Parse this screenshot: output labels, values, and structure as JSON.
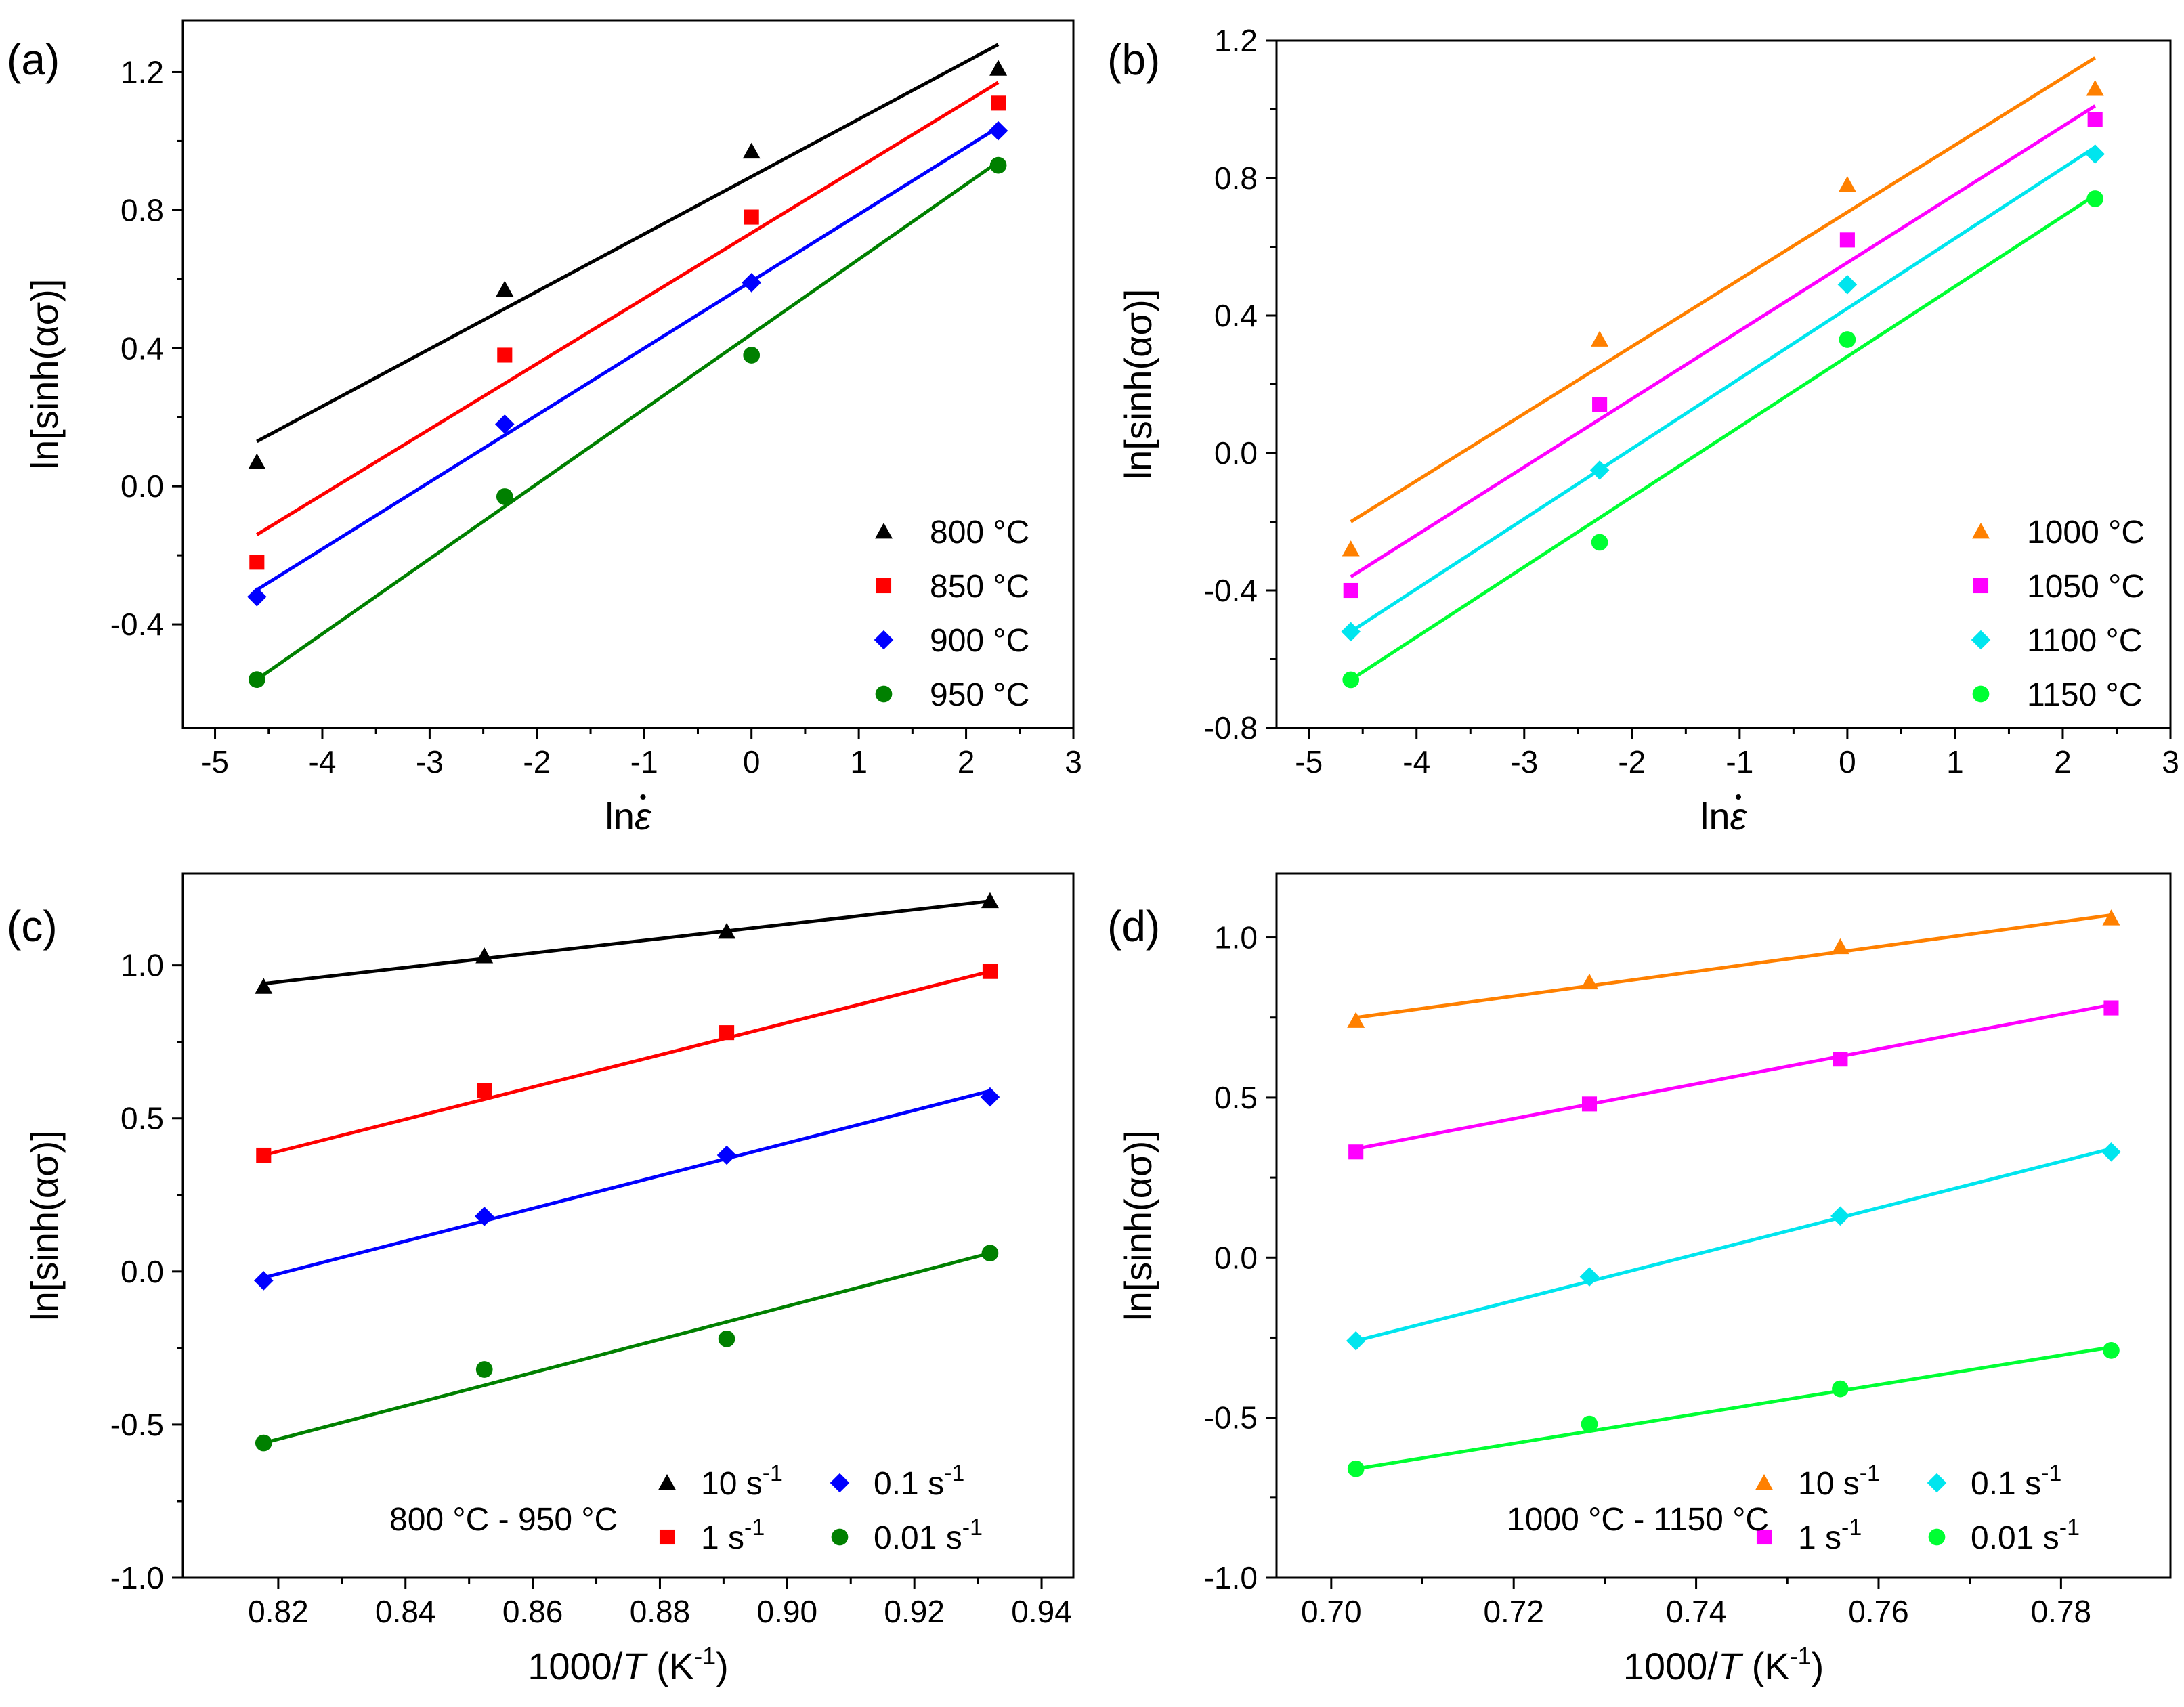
{
  "figure_title": "",
  "colors": {
    "c800": "#000000",
    "c850": "#ff0000",
    "c900": "#0000ff",
    "c950": "#008000",
    "c1000": "#ff8000",
    "c1050": "#ff00ff",
    "c1100": "#00e5ee",
    "c1150": "#00ff33"
  },
  "chart_data": [
    {
      "id": "a",
      "panel_label": "(a)",
      "type": "scatter",
      "xlabel_pre": "ln",
      "xlabel_sym": "ε",
      "ylabel": "ln[sinh(ασ)]",
      "xlim": [
        -5.3,
        3
      ],
      "ylim": [
        -0.7,
        1.35
      ],
      "xticks": [
        -5,
        -4,
        -3,
        -2,
        -1,
        0,
        1,
        2,
        3
      ],
      "yticks": [
        -0.4,
        0.0,
        0.4,
        0.8,
        1.2
      ],
      "tick_labels_x": [
        "-5",
        "-4",
        "-3",
        "-2",
        "-1",
        "0",
        "1",
        "2",
        "3"
      ],
      "tick_labels_y": [
        "-0.4",
        "0.0",
        "0.4",
        "0.8",
        "1.2"
      ],
      "legend_position": "bottom-right",
      "series": [
        {
          "name": "800 °C",
          "color": "#000000",
          "marker": "triangle",
          "x": [
            -4.61,
            -2.3,
            0,
            2.3
          ],
          "y": [
            0.07,
            0.57,
            0.97,
            1.21
          ],
          "fit": [
            [
              -4.61,
              0.13
            ],
            [
              2.3,
              1.28
            ]
          ]
        },
        {
          "name": "850 °C",
          "color": "#ff0000",
          "marker": "square",
          "x": [
            -4.61,
            -2.3,
            0,
            2.3
          ],
          "y": [
            -0.22,
            0.38,
            0.78,
            1.11
          ],
          "fit": [
            [
              -4.61,
              -0.14
            ],
            [
              2.3,
              1.17
            ]
          ]
        },
        {
          "name": "900 °C",
          "color": "#0000ff",
          "marker": "diamond",
          "x": [
            -4.61,
            -2.3,
            0,
            2.3
          ],
          "y": [
            -0.32,
            0.18,
            0.59,
            1.03
          ],
          "fit": [
            [
              -4.61,
              -0.3
            ],
            [
              2.3,
              1.04
            ]
          ]
        },
        {
          "name": "950 °C",
          "color": "#008000",
          "marker": "circle",
          "x": [
            -4.61,
            -2.3,
            0,
            2.3
          ],
          "y": [
            -0.56,
            -0.03,
            0.38,
            0.93
          ],
          "fit": [
            [
              -4.61,
              -0.56
            ],
            [
              2.3,
              0.94
            ]
          ]
        }
      ]
    },
    {
      "id": "b",
      "panel_label": "(b)",
      "type": "scatter",
      "xlabel_pre": "ln",
      "xlabel_sym": "ε",
      "ylabel": "ln[sinh(ασ)]",
      "xlim": [
        -5.3,
        3
      ],
      "ylim": [
        -0.8,
        1.2
      ],
      "xticks": [
        -5,
        -4,
        -3,
        -2,
        -1,
        0,
        1,
        2,
        3
      ],
      "yticks": [
        -0.8,
        -0.4,
        0.0,
        0.4,
        0.8,
        1.2
      ],
      "tick_labels_x": [
        "-5",
        "-4",
        "-3",
        "-2",
        "-1",
        "0",
        "1",
        "2",
        "3"
      ],
      "tick_labels_y": [
        "-0.8",
        "-0.4",
        "0.0",
        "0.4",
        "0.8",
        "1.2"
      ],
      "legend_position": "bottom-right",
      "series": [
        {
          "name": "1000 °C",
          "color": "#ff8000",
          "marker": "triangle",
          "x": [
            -4.61,
            -2.3,
            0,
            2.3
          ],
          "y": [
            -0.28,
            0.33,
            0.78,
            1.06
          ],
          "fit": [
            [
              -4.61,
              -0.2
            ],
            [
              2.3,
              1.15
            ]
          ]
        },
        {
          "name": "1050 °C",
          "color": "#ff00ff",
          "marker": "square",
          "x": [
            -4.61,
            -2.3,
            0,
            2.3
          ],
          "y": [
            -0.4,
            0.14,
            0.62,
            0.97
          ],
          "fit": [
            [
              -4.61,
              -0.36
            ],
            [
              2.3,
              1.01
            ]
          ]
        },
        {
          "name": "1100 °C",
          "color": "#00e5ee",
          "marker": "diamond",
          "x": [
            -4.61,
            -2.3,
            0,
            2.3
          ],
          "y": [
            -0.52,
            -0.05,
            0.49,
            0.87
          ],
          "fit": [
            [
              -4.61,
              -0.52
            ],
            [
              2.3,
              0.89
            ]
          ]
        },
        {
          "name": "1150 °C",
          "color": "#00ff33",
          "marker": "circle",
          "x": [
            -4.61,
            -2.3,
            0,
            2.3
          ],
          "y": [
            -0.66,
            -0.26,
            0.33,
            0.74
          ],
          "fit": [
            [
              -4.61,
              -0.66
            ],
            [
              2.3,
              0.75
            ]
          ]
        }
      ]
    },
    {
      "id": "c",
      "panel_label": "(c)",
      "type": "scatter",
      "xlabel_pre": "1000/",
      "xlabel_sym": "T",
      "xlabel_post": " (K",
      "xlabel_sup": "-1",
      "xlabel_end": ")",
      "ylabel": "ln[sinh(ασ)]",
      "xlim": [
        0.805,
        0.945
      ],
      "ylim": [
        -1.0,
        1.3
      ],
      "xticks": [
        0.82,
        0.84,
        0.86,
        0.88,
        0.9,
        0.92,
        0.94
      ],
      "yticks": [
        -1.0,
        -0.5,
        0.0,
        0.5,
        1.0
      ],
      "tick_labels_x": [
        "0.82",
        "0.84",
        "0.86",
        "0.88",
        "0.90",
        "0.92",
        "0.94"
      ],
      "tick_labels_y": [
        "-1.0",
        "-0.5",
        "0.0",
        "0.5",
        "1.0"
      ],
      "annotation": "800 °C - 950 °C",
      "legend_position": "bottom-right",
      "series": [
        {
          "name": "10 s",
          "sup": "-1",
          "color": "#000000",
          "marker": "triangle",
          "x": [
            0.8177,
            0.8524,
            0.8905,
            0.9319
          ],
          "y": [
            0.93,
            1.03,
            1.11,
            1.21
          ],
          "fit": [
            [
              0.8177,
              0.94
            ],
            [
              0.9319,
              1.21
            ]
          ]
        },
        {
          "name": "1 s",
          "sup": "-1",
          "color": "#ff0000",
          "marker": "square",
          "x": [
            0.8177,
            0.8524,
            0.8905,
            0.9319
          ],
          "y": [
            0.38,
            0.59,
            0.78,
            0.98
          ],
          "fit": [
            [
              0.8177,
              0.38
            ],
            [
              0.9319,
              0.98
            ]
          ]
        },
        {
          "name": "0.1 s",
          "sup": "-1",
          "color": "#0000ff",
          "marker": "diamond",
          "x": [
            0.8177,
            0.8524,
            0.8905,
            0.9319
          ],
          "y": [
            -0.03,
            0.18,
            0.38,
            0.57
          ],
          "fit": [
            [
              0.8177,
              -0.02
            ],
            [
              0.9319,
              0.59
            ]
          ]
        },
        {
          "name": "0.01 s",
          "sup": "-1",
          "color": "#008000",
          "marker": "circle",
          "x": [
            0.8177,
            0.8524,
            0.8905,
            0.9319
          ],
          "y": [
            -0.56,
            -0.32,
            -0.22,
            0.06
          ],
          "fit": [
            [
              0.8177,
              -0.56
            ],
            [
              0.9319,
              0.06
            ]
          ]
        }
      ]
    },
    {
      "id": "d",
      "panel_label": "(d)",
      "type": "scatter",
      "xlabel_pre": "1000/",
      "xlabel_sym": "T",
      "xlabel_post": " (K",
      "xlabel_sup": "-1",
      "xlabel_end": ")",
      "ylabel": "ln[sinh(ασ)]",
      "xlim": [
        0.694,
        0.792
      ],
      "ylim": [
        -1.0,
        1.2
      ],
      "xticks": [
        0.7,
        0.72,
        0.74,
        0.76,
        0.78
      ],
      "yticks": [
        -1.0,
        -0.5,
        0.0,
        0.5,
        1.0
      ],
      "tick_labels_x": [
        "0.70",
        "0.72",
        "0.74",
        "0.76",
        "0.78"
      ],
      "tick_labels_y": [
        "-1.0",
        "-0.5",
        "0.0",
        "0.5",
        "1.0"
      ],
      "annotation": "1000 °C - 1150 °C",
      "legend_position": "bottom-right",
      "series": [
        {
          "name": "10 s",
          "sup": "-1",
          "color": "#ff8000",
          "marker": "triangle",
          "x": [
            0.7027,
            0.7283,
            0.7558,
            0.7855
          ],
          "y": [
            0.74,
            0.86,
            0.97,
            1.06
          ],
          "fit": [
            [
              0.7027,
              0.75
            ],
            [
              0.7855,
              1.07
            ]
          ]
        },
        {
          "name": "1 s",
          "sup": "-1",
          "color": "#ff00ff",
          "marker": "square",
          "x": [
            0.7027,
            0.7283,
            0.7558,
            0.7855
          ],
          "y": [
            0.33,
            0.48,
            0.62,
            0.78
          ],
          "fit": [
            [
              0.7027,
              0.34
            ],
            [
              0.7855,
              0.79
            ]
          ]
        },
        {
          "name": "0.1 s",
          "sup": "-1",
          "color": "#00e5ee",
          "marker": "diamond",
          "x": [
            0.7027,
            0.7283,
            0.7558,
            0.7855
          ],
          "y": [
            -0.26,
            -0.06,
            0.13,
            0.33
          ],
          "fit": [
            [
              0.7027,
              -0.26
            ],
            [
              0.7855,
              0.34
            ]
          ]
        },
        {
          "name": "0.01 s",
          "sup": "-1",
          "color": "#00ff33",
          "marker": "circle",
          "x": [
            0.7027,
            0.7283,
            0.7558,
            0.7855
          ],
          "y": [
            -0.66,
            -0.52,
            -0.41,
            -0.29
          ],
          "fit": [
            [
              0.7027,
              -0.66
            ],
            [
              0.7855,
              -0.28
            ]
          ]
        }
      ]
    }
  ]
}
